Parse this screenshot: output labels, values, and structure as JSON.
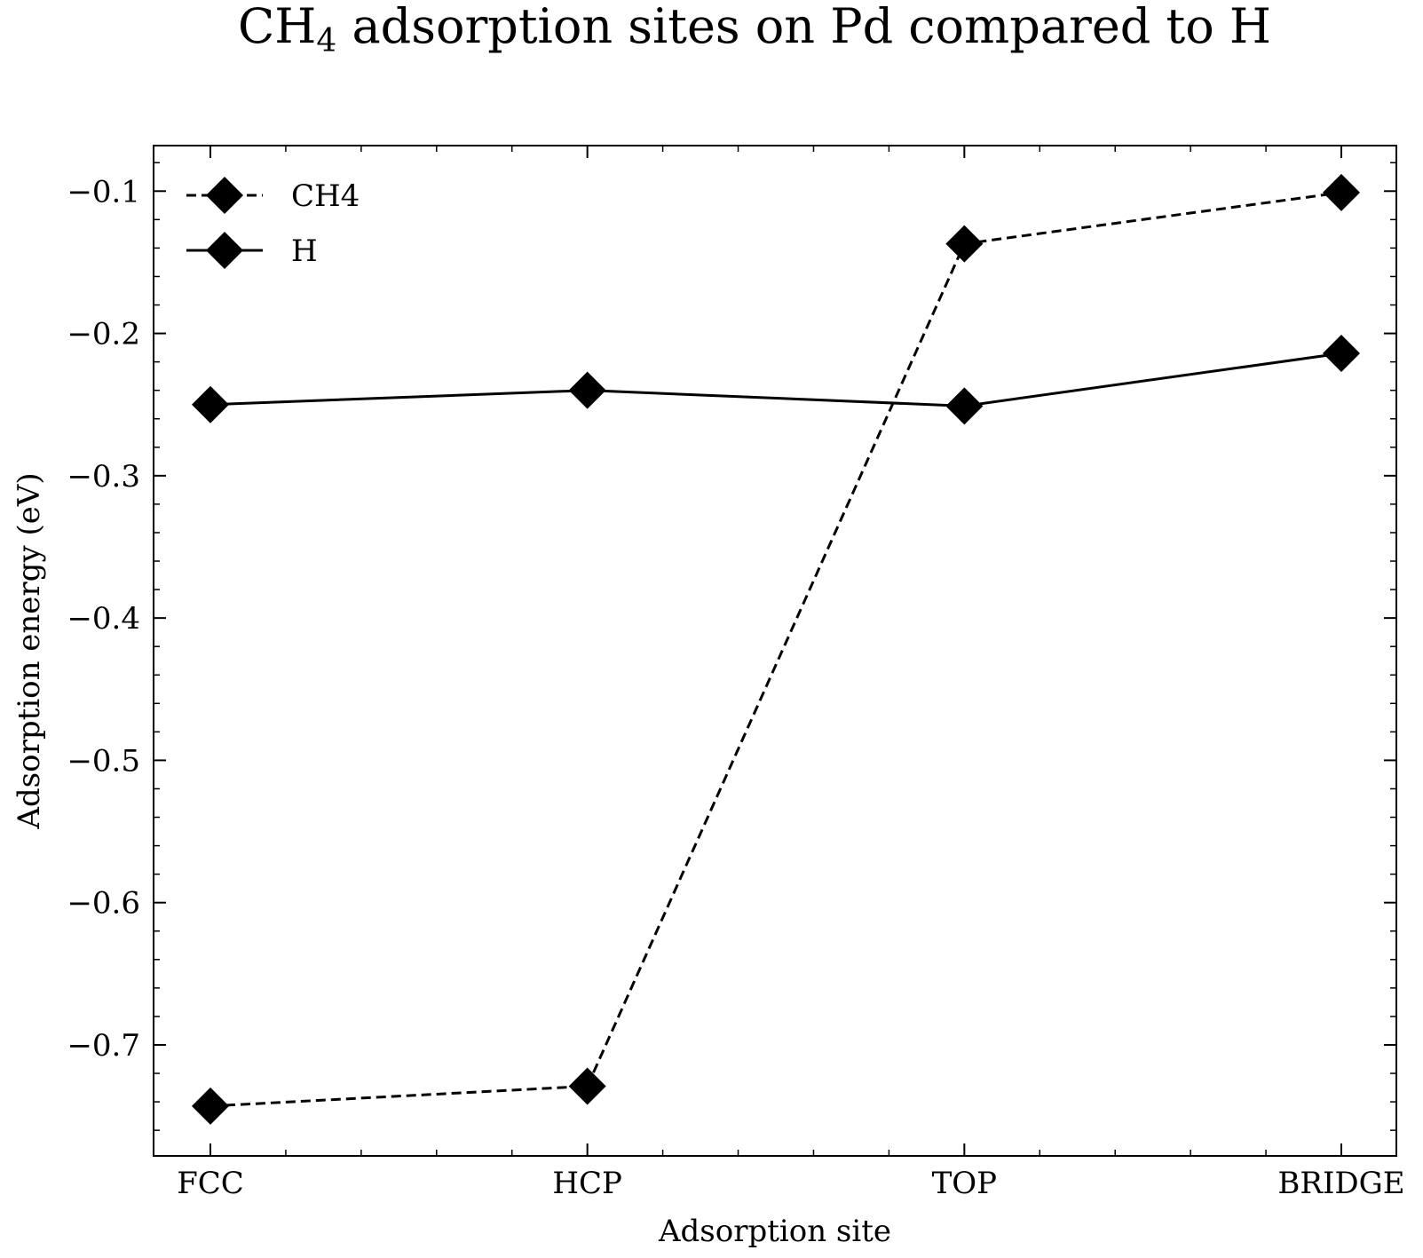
{
  "chart_data": {
    "type": "line",
    "title": {
      "prefix": "CH",
      "subscript": "4",
      "suffix": " adsorption sites on Pd compared to H"
    },
    "xlabel": "Adsorption site",
    "ylabel": "Adsorption energy (eV)",
    "categories": [
      "FCC",
      "HCP",
      "TOP",
      "BRIDGE"
    ],
    "ylim": [
      -0.778,
      -0.068
    ],
    "yticks": [
      -0.7,
      -0.6,
      -0.5,
      -0.4,
      -0.3,
      -0.2,
      -0.1
    ],
    "ytick_labels": [
      "−0.7",
      "−0.6",
      "−0.5",
      "−0.4",
      "−0.3",
      "−0.2",
      "−0.1"
    ],
    "grid": false,
    "legend_position": "upper-left",
    "series": [
      {
        "name": "CH4",
        "values": [
          -0.743,
          -0.729,
          -0.137,
          -0.101
        ],
        "line_style": "dashed",
        "marker": "diamond",
        "color": "#000000"
      },
      {
        "name": "H",
        "values": [
          -0.25,
          -0.24,
          -0.251,
          -0.214
        ],
        "line_style": "solid",
        "marker": "diamond",
        "color": "#000000"
      }
    ]
  }
}
